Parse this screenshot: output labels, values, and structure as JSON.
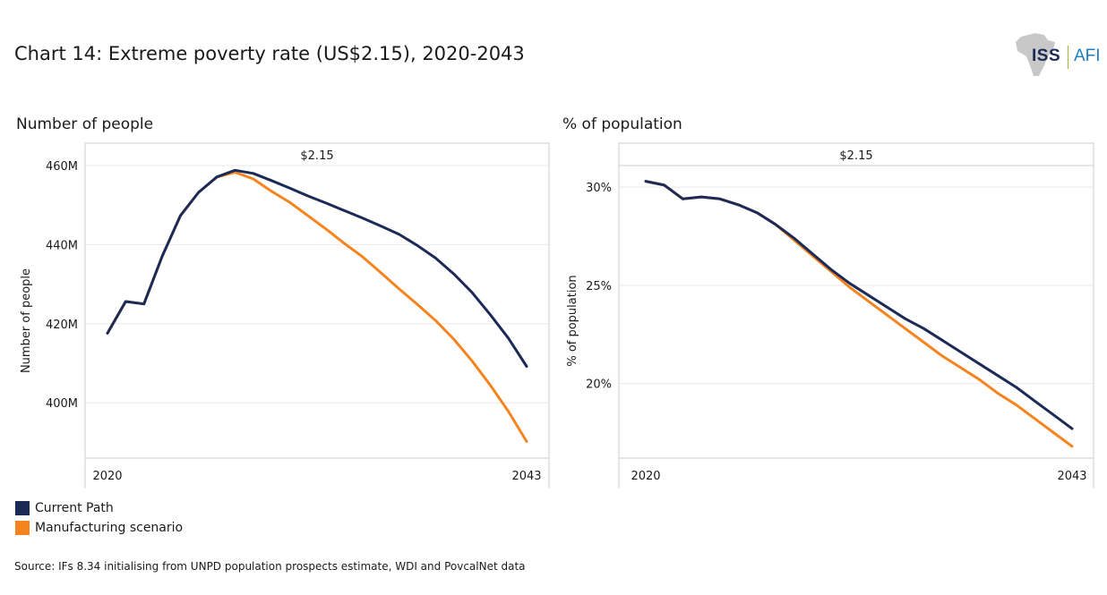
{
  "title": "Chart 14: Extreme poverty rate (US$2.15), 2020-2043",
  "logo": {
    "left": "ISS",
    "right": "AFI"
  },
  "source": "Source: IFs 8.34 initialising from UNPD population prospects estimate, WDI and PovcalNet data",
  "colors": {
    "current": "#1c2a56",
    "manufacturing": "#f5841f",
    "grid": "#e8e8e8",
    "border": "#cccccc"
  },
  "chart_data": [
    {
      "type": "line",
      "panel_title": "Number of people",
      "facet_label": "$2.15",
      "ylabel": "Number of people",
      "xlabel": "",
      "x_range": [
        2020,
        2043
      ],
      "x_ticks": [
        "2020",
        "2043"
      ],
      "y_range": [
        386,
        460
      ],
      "y_ticks": [
        400,
        420,
        440,
        460
      ],
      "y_tick_labels": [
        "400M",
        "420M",
        "440M",
        "460M"
      ],
      "x": [
        2020,
        2021,
        2022,
        2023,
        2024,
        2025,
        2026,
        2027,
        2028,
        2029,
        2030,
        2031,
        2032,
        2033,
        2034,
        2035,
        2036,
        2037,
        2038,
        2039,
        2040,
        2041,
        2042,
        2043
      ],
      "series": [
        {
          "name": "Current Path",
          "key": "current",
          "values": [
            417.6,
            425.6,
            425.0,
            437.0,
            447.3,
            453.2,
            457.1,
            458.8,
            458.0,
            456.2,
            454.3,
            452.3,
            450.5,
            448.6,
            446.7,
            444.7,
            442.6,
            439.8,
            436.6,
            432.6,
            427.9,
            422.3,
            416.3,
            409.2
          ]
        },
        {
          "name": "Manufacturing scenario",
          "key": "manufacturing",
          "values": [
            417.6,
            425.6,
            425.0,
            437.0,
            447.3,
            453.2,
            457.1,
            458.3,
            456.6,
            453.5,
            450.7,
            447.3,
            443.9,
            440.3,
            436.9,
            432.9,
            428.8,
            424.9,
            420.8,
            416.1,
            410.6,
            404.5,
            397.8,
            390.2
          ]
        }
      ]
    },
    {
      "type": "line",
      "panel_title": "% of population",
      "facet_label": "$2.15",
      "ylabel": "% of population",
      "xlabel": "",
      "x_range": [
        2020,
        2043
      ],
      "x_ticks": [
        "2020",
        "2043"
      ],
      "y_range": [
        16.2,
        31.1
      ],
      "y_ticks": [
        20,
        25,
        30
      ],
      "y_tick_labels": [
        "20%",
        "25%",
        "30%"
      ],
      "x": [
        2020,
        2021,
        2022,
        2023,
        2024,
        2025,
        2026,
        2027,
        2028,
        2029,
        2030,
        2031,
        2032,
        2033,
        2034,
        2035,
        2036,
        2037,
        2038,
        2039,
        2040,
        2041,
        2042,
        2043
      ],
      "series": [
        {
          "name": "Current Path",
          "key": "current",
          "values": [
            30.3,
            30.1,
            29.4,
            29.5,
            29.4,
            29.1,
            28.7,
            28.1,
            27.4,
            26.6,
            25.8,
            25.1,
            24.5,
            23.9,
            23.3,
            22.8,
            22.2,
            21.6,
            21.0,
            20.4,
            19.8,
            19.1,
            18.4,
            17.7
          ]
        },
        {
          "name": "Manufacturing scenario",
          "key": "manufacturing",
          "values": [
            30.3,
            30.1,
            29.4,
            29.5,
            29.4,
            29.1,
            28.7,
            28.1,
            27.3,
            26.5,
            25.7,
            24.9,
            24.2,
            23.5,
            22.8,
            22.1,
            21.4,
            20.8,
            20.2,
            19.5,
            18.9,
            18.2,
            17.5,
            16.8
          ]
        }
      ]
    }
  ],
  "legend": [
    {
      "label": "Current Path",
      "key": "current"
    },
    {
      "label": "Manufacturing scenario",
      "key": "manufacturing"
    }
  ]
}
